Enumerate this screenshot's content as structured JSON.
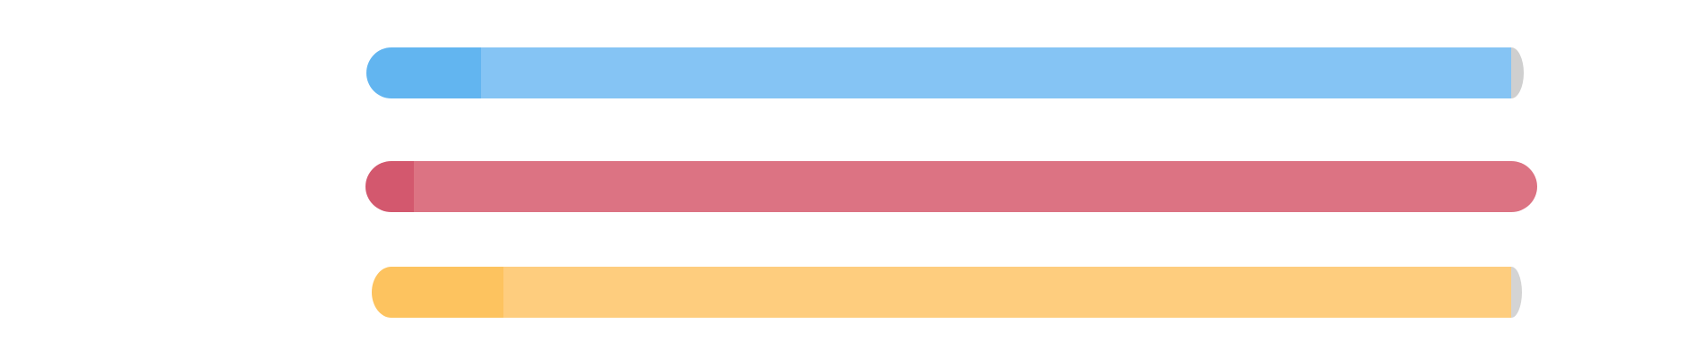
{
  "chart_data": {
    "type": "bar",
    "orientation": "horizontal",
    "title": "",
    "xlabel": "",
    "ylabel": "",
    "xlim": [
      0,
      100
    ],
    "grid": false,
    "legend": "none",
    "series": [
      {
        "value": 100,
        "highlight": 8,
        "color": "#85c4f4",
        "highlight_color": "#62b5f0",
        "cap_color": "#cfcfcf"
      },
      {
        "value": 100,
        "highlight": 2,
        "color": "#dc7383",
        "highlight_color": "#d3586e",
        "cap_color": "#dc7383"
      },
      {
        "value": 100,
        "highlight": 10,
        "color": "#fecd7e",
        "highlight_color": "#fdc35f",
        "cap_color": "#d4d4d4"
      }
    ]
  }
}
